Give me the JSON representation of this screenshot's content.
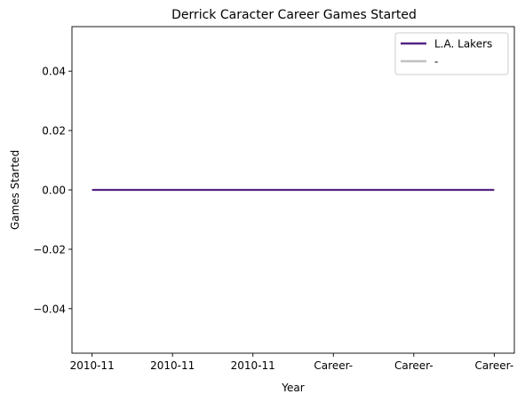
{
  "chart_data": {
    "type": "line",
    "title": "Derrick Caracter Career Games Started",
    "xlabel": "Year",
    "ylabel": "Games Started",
    "categories": [
      "2010-11",
      "2010-11",
      "2010-11",
      "Career-",
      "Career-",
      "Career-"
    ],
    "ylim": [
      -0.055,
      0.055
    ],
    "yticks": [
      -0.04,
      -0.02,
      0.0,
      0.02,
      0.04
    ],
    "ytick_labels": [
      "−0.04",
      "−0.02",
      "0.00",
      "0.02",
      "0.04"
    ],
    "grid": false,
    "legend_position": "top-right",
    "series": [
      {
        "name": "L.A. Lakers",
        "color": "#552583",
        "points": [
          [
            0,
            0
          ],
          [
            1,
            0
          ],
          [
            2,
            0
          ],
          [
            3,
            0
          ],
          [
            4,
            0
          ],
          [
            5,
            0
          ]
        ]
      },
      {
        "name": "-",
        "color": "#C0C0C0",
        "points": []
      }
    ]
  }
}
